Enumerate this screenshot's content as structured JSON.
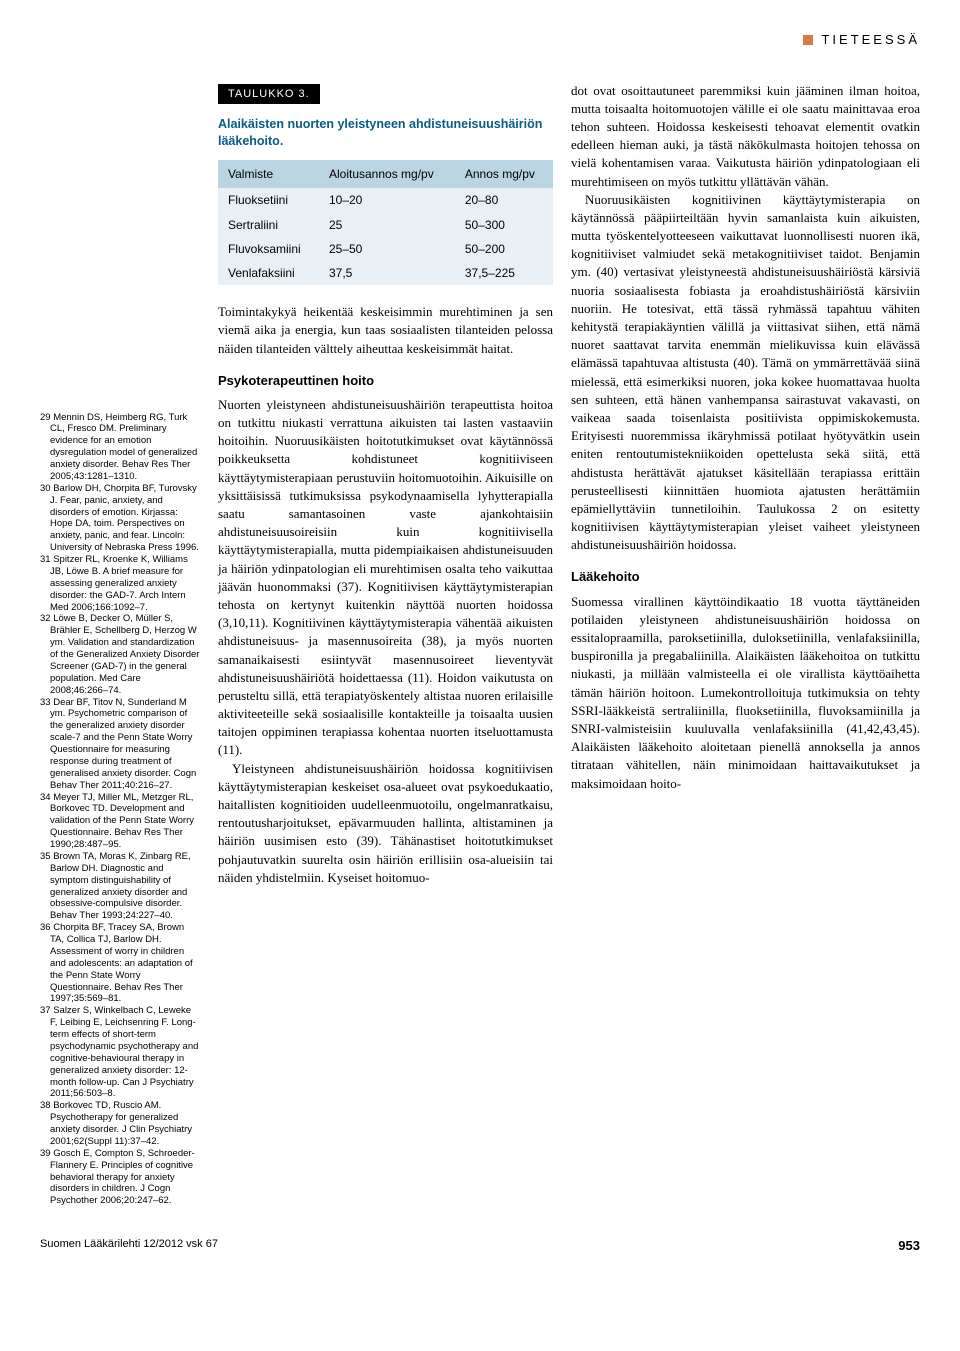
{
  "header": {
    "section_label": "TIETEESSÄ"
  },
  "table": {
    "label": "TAULUKKO 3.",
    "title": "Alaikäisten nuorten yleistyneen ahdistuneisuushäiriön lääkehoito.",
    "columns": [
      "Valmiste",
      "Aloitusannos mg/pv",
      "Annos mg/pv"
    ],
    "rows": [
      [
        "Fluoksetiini",
        "10–20",
        "20–80"
      ],
      [
        "Sertraliini",
        "25",
        "50–300"
      ],
      [
        "Fluvoksamiini",
        "25–50",
        "50–200"
      ],
      [
        "Venlafaksiini",
        "37,5",
        "37,5–225"
      ]
    ],
    "header_bg": "#b9d4e3",
    "body_bg": "#e8f0f5",
    "title_color": "#0a5a8a"
  },
  "references": [
    "29 Mennin DS, Heimberg RG, Turk CL, Fresco DM. Preliminary evidence for an emotion dysregulation model of generalized anxiety disorder. Behav Res Ther 2005;43:1281–1310.",
    "30 Barlow DH, Chorpita BF, Turovsky J. Fear, panic, anxiety, and disorders of emotion. Kirjassa: Hope DA, toim. Perspectives on anxiety, panic, and fear. Lincoln: University of Nebraska Press 1996.",
    "31 Spitzer RL, Kroenke K, Williams JB, Löwe B. A brief measure for assessing generalized anxiety disorder: the GAD-7. Arch Intern Med 2006;166:1092–7.",
    "32 Löwe B, Decker O, Müller S, Brähler E, Schellberg D, Herzog W ym. Validation and standardization of the Generalized Anxiety Disorder Screener (GAD-7) in the general population. Med Care 2008;46:266–74.",
    "33 Dear BF, Titov N, Sunderland M ym. Psychometric comparison of the generalized anxiety disorder scale-7 and the Penn State Worry Questionnaire for measuring response during treatment of generalised anxiety disorder. Cogn Behav Ther 2011;40:216–27.",
    "34 Meyer TJ, Miller ML, Metzger RL, Borkovec TD. Development and validation of the Penn State Worry Questionnaire. Behav Res Ther 1990;28:487–95.",
    "35 Brown TA, Moras K, Zinbarg RE, Barlow DH. Diagnostic and symptom distinguishability of generalized anxiety disorder and obsessive-compulsive disorder. Behav Ther 1993;24:227–40.",
    "36 Chorpita BF, Tracey SA, Brown TA, Collica TJ, Barlow DH. Assessment of worry in children and adolescents: an adaptation of the Penn State Worry Questionnaire. Behav Res Ther 1997;35:569–81.",
    "37 Salzer S, Winkelbach C, Leweke F, Leibing E, Leichsenring F. Long-term effects of short-term psychodynamic psychotherapy and cognitive-behavioural therapy in generalized anxiety disorder: 12-month follow-up. Can J Psychiatry 2011;56:503–8.",
    "38 Borkovec TD, Ruscio AM. Psychotherapy for generalized anxiety disorder. J Clin Psychiatry 2001;62(Suppl 11):37–42.",
    "39 Gosch E, Compton S, Schroeder-Flannery E. Principles of cognitive behavioral therapy for anxiety disorders in children. J Cogn Psychother 2006;20:247–62."
  ],
  "middle_column": {
    "intro": "Toimintakykyä heikentää keskeisimmin murehtiminen ja sen viemä aika ja energia, kun taas sosiaalisten tilanteiden pelossa näiden tilanteiden välttely aiheuttaa keskeisimmät haitat.",
    "heading1": "Psykoterapeuttinen hoito",
    "p1": "Nuorten yleistyneen ahdistuneisuushäiriön terapeuttista hoitoa on tutkittu niukasti verrattuna aikuisten tai lasten vastaaviin hoitoihin. Nuoruusikäisten hoitotutkimukset ovat käytännössä poikkeuksetta kohdistuneet kognitiiviseen käyttäytymisterapiaan perustuviin hoitomuotoihin. Aikuisille on yksittäisissä tutkimuksissa psykodynaamisella lyhytterapialla saatu samantasoinen vaste ajankohtaisiin ahdistuneisuusoireisiin kuin kognitiivisella käyttäytymisterapialla, mutta pidempiaikaisen ahdistuneisuuden ja häiriön ydinpatologian eli murehtimisen osalta teho vaikuttaa jäävän huonommaksi (37). Kognitiivisen käyttäytymisterapian tehosta on kertynyt kuitenkin näyttöä nuorten hoidossa (3,10,11). Kognitiivinen käyttäytymisterapia vähentää aikuisten ahdistuneisuus- ja masennusoireita (38), ja myös nuorten samanaikaisesti esiintyvät masennusoireet lieventyvät ahdistuneisuushäiriötä hoidettaessa (11). Hoidon vaikutusta on perusteltu sillä, että terapiatyöskentely altistaa nuoren erilaisille aktiviteeteille sekä sosiaalisille kontakteille ja toisaalta uusien taitojen oppiminen terapiassa kohentaa nuorten itseluottamusta (11).",
    "p2": "Yleistyneen ahdistuneisuushäiriön hoidossa kognitiivisen käyttäytymisterapian keskeiset osa-alueet ovat psykoedukaatio, haitallisten kognitioiden uudelleenmuotoilu, ongelmanratkaisu, rentoutusharjoitukset, epävarmuuden hallinta, altistaminen ja häiriön uusimisen esto (39). Tähänastiset hoitotutkimukset pohjautuvatkin suurelta osin häiriön erillisiin osa-alueisiin tai näiden yhdistelmiin. Kyseiset hoitomuo-"
  },
  "right_column": {
    "p1": "dot ovat osoittautuneet paremmiksi kuin jääminen ilman hoitoa, mutta toisaalta hoitomuotojen välille ei ole saatu mainittavaa eroa tehon suhteen. Hoidossa keskeisesti tehoavat elementit ovatkin edelleen hieman auki, ja tästä näkökulmasta hoitojen tehossa on vielä kohentamisen varaa. Vaikutusta häiriön ydinpatologiaan eli murehtimiseen on myös tutkittu yllättävän vähän.",
    "p2": "Nuoruusikäisten kognitiivinen käyttäytymisterapia on käytännössä pääpiirteiltään hyvin samanlaista kuin aikuisten, mutta työskentelyotteeseen vaikuttavat luonnollisesti nuoren ikä, kognitiiviset valmiudet sekä metakognitiiviset taidot. Benjamin ym. (40) vertasivat yleistyneestä ahdistuneisuushäiriöstä kärsiviä nuoria sosiaalisesta fobiasta ja eroahdistushäiriöstä kärsiviin nuoriin. He totesivat, että tässä ryhmässä tapahtuu vähiten kehitystä terapiakäyntien välillä ja viittasivat siihen, että nämä nuoret saattavat tarvita enemmän mielikuvissa kuin elävässä elämässä tapahtuvaa altistusta (40). Tämä on ymmärrettävää siinä mielessä, että esimerkiksi nuoren, joka kokee huomattavaa huolta sen suhteen, että hänen vanhempansa sairastuvat vakavasti, on vaikeaa saada toisenlaista positiivista oppimiskokemusta. Erityisesti nuoremmissa ikäryhmissä potilaat hyötyvätkin usein eniten rentoutumistekniikoiden opettelusta sekä siitä, että ahdistusta herättävät ajatukset käsitellään terapiassa erittäin perusteellisesti kiinnittäen huomiota ajatusten herättämiin epämiellyttäviin tunnetiloihin. Taulukossa 2 on esitetty kognitiivisen käyttäytymisterapian yleiset vaiheet yleistyneen ahdistuneisuushäiriön hoidossa.",
    "heading2": "Lääkehoito",
    "p3": "Suomessa virallinen käyttöindikaatio 18 vuotta täyttäneiden potilaiden yleistyneen ahdistuneisuushäiriön hoidossa on essitalopraamilla, paroksetiinilla, duloksetiinilla, venlafaksiinilla, buspironilla ja pregabaliinilla. Alaikäisten lääkehoitoa on tutkittu niukasti, ja millään valmisteella ei ole virallista käyttöaihetta tämän häiriön hoitoon. Lumekontrolloituja tutkimuksia on tehty SSRI-lääkkeistä sertraliinilla, fluoksetiinilla, fluvoksamiinilla ja SNRI-valmisteisiin kuuluvalla venlafaksiinilla (41,42,43,45). Alaikäisten lääkehoito aloitetaan pienellä annoksella ja annos titrataan vähitellen, näin minimoidaan haittavaikutukset ja maksimoidaan hoito-"
  },
  "footer": {
    "journal": "Suomen Lääkärilehti 12/2012 vsk 67",
    "page": "953"
  }
}
